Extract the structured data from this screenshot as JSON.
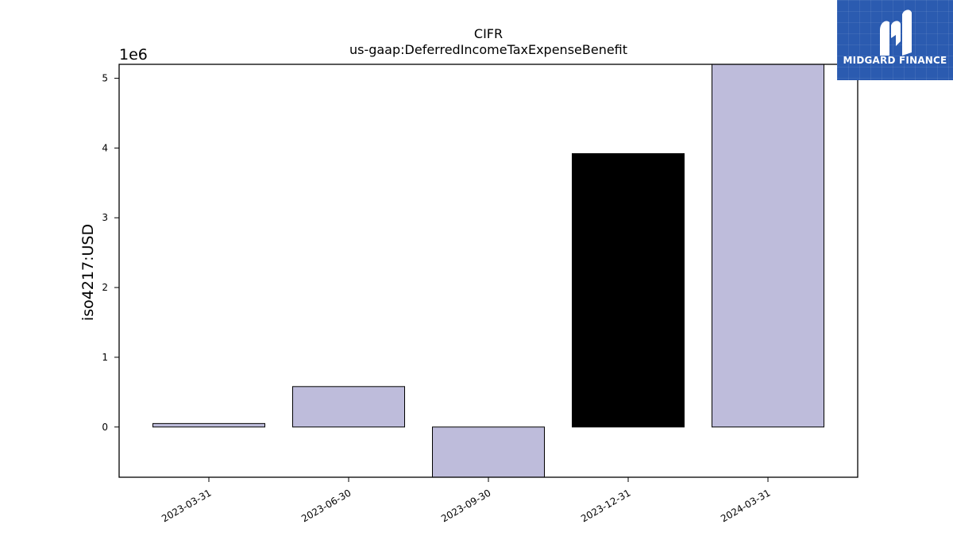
{
  "chart_data": {
    "type": "bar",
    "title": "CIFR",
    "subtitle": "us-gaap:DeferredIncomeTaxExpenseBenefit",
    "ylabel": "iso4217:USD",
    "xlabel": "",
    "y_scale_label": "1e6",
    "categories": [
      "2023-03-31",
      "2023-06-30",
      "2023-09-30",
      "2023-12-31",
      "2024-03-31"
    ],
    "values": [
      50000,
      580000,
      -720000,
      3920000,
      5200000
    ],
    "ylim": [
      -720000,
      5200000
    ],
    "yticks": [
      0,
      1,
      2,
      3,
      4,
      5
    ],
    "grid": false,
    "bar_colors": [
      "#bebcdb",
      "#bebcdb",
      "#bebcdb",
      "#000000",
      "#bebcdb"
    ],
    "edge_color": "#000000"
  },
  "logo": {
    "text": "MIDGARD FINANCE",
    "background": "#2b5bb0"
  }
}
